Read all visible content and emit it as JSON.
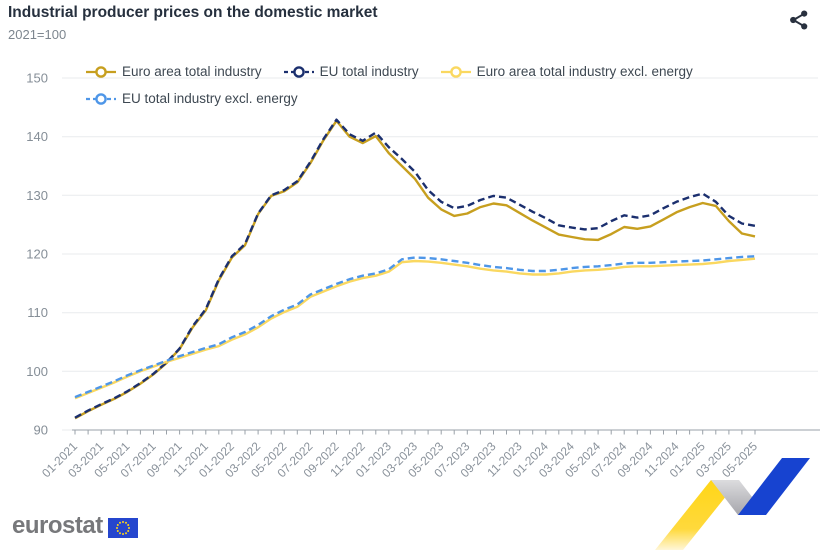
{
  "header": {
    "title": "Industrial producer prices on the domestic market",
    "subtitle": "2021=100"
  },
  "icons": {
    "share": "share-nodes-icon",
    "eu_flag": "eu-flag-icon"
  },
  "footer": {
    "logo_text": "eurostat"
  },
  "chart_data": {
    "type": "line",
    "title": "Industrial producer prices on the domestic market",
    "subtitle": "2021=100",
    "x_start": "01-2021",
    "x_end": "05-2025",
    "x_step_months": 1,
    "x_labels": [
      "01-2021",
      "03-2021",
      "05-2021",
      "07-2021",
      "09-2021",
      "11-2021",
      "01-2022",
      "03-2022",
      "05-2022",
      "07-2022",
      "09-2022",
      "11-2022",
      "01-2023",
      "03-2023",
      "05-2023",
      "07-2023",
      "09-2023",
      "11-2023",
      "01-2024",
      "03-2024",
      "05-2024",
      "07-2024",
      "09-2024",
      "11-2024",
      "01-2025",
      "03-2025",
      "05-2025"
    ],
    "x_label_every_n_points": 2,
    "ylim": [
      90,
      150
    ],
    "yticks": [
      90,
      100,
      110,
      120,
      130,
      140,
      150
    ],
    "grid": "horizontal",
    "legend_position": "top",
    "series": [
      {
        "name": "Euro area total industry",
        "color": "#C79F1F",
        "dash": "solid",
        "values": [
          92.0,
          93.2,
          94.3,
          95.3,
          96.5,
          97.9,
          99.5,
          101.4,
          103.8,
          107.5,
          110.4,
          115.5,
          119.4,
          121.5,
          126.8,
          129.9,
          130.7,
          132.2,
          135.5,
          139.4,
          142.7,
          140.0,
          138.9,
          140.1,
          137.2,
          135.0,
          132.8,
          129.6,
          127.6,
          126.5,
          126.9,
          128.0,
          128.6,
          128.3,
          127.0,
          125.7,
          124.5,
          123.3,
          122.9,
          122.5,
          122.4,
          123.4,
          124.6,
          124.3,
          124.7,
          125.9,
          127.1,
          128.0,
          128.7,
          128.2,
          125.6,
          123.5,
          123.0
        ]
      },
      {
        "name": "EU total industry",
        "color": "#1B2F6E",
        "dash": "dashed",
        "values": [
          92.1,
          93.3,
          94.4,
          95.4,
          96.6,
          98.0,
          99.6,
          101.5,
          103.9,
          107.7,
          110.6,
          115.7,
          119.6,
          121.7,
          126.9,
          130.0,
          130.9,
          132.4,
          135.7,
          139.6,
          142.9,
          140.4,
          139.3,
          140.7,
          138.2,
          136.2,
          134.0,
          130.9,
          128.9,
          127.8,
          128.2,
          129.2,
          129.9,
          129.6,
          128.4,
          127.2,
          126.1,
          124.9,
          124.5,
          124.2,
          124.4,
          125.6,
          126.6,
          126.2,
          126.6,
          127.8,
          128.9,
          129.7,
          130.3,
          128.9,
          126.5,
          125.2,
          124.8
        ]
      },
      {
        "name": "Euro area total industry excl. energy",
        "color": "#FAD860",
        "dash": "solid",
        "values": [
          95.4,
          96.3,
          97.2,
          98.1,
          99.1,
          100.0,
          100.8,
          101.6,
          102.3,
          103.0,
          103.7,
          104.3,
          105.4,
          106.3,
          107.5,
          109.0,
          110.1,
          111.0,
          112.7,
          113.6,
          114.5,
          115.3,
          115.9,
          116.3,
          117.0,
          118.6,
          118.8,
          118.7,
          118.5,
          118.2,
          117.9,
          117.5,
          117.2,
          117.0,
          116.7,
          116.5,
          116.5,
          116.7,
          117.0,
          117.2,
          117.3,
          117.5,
          117.8,
          117.9,
          117.9,
          118.0,
          118.1,
          118.2,
          118.3,
          118.5,
          118.8,
          119.0,
          119.2
        ]
      },
      {
        "name": "EU total industry excl. energy",
        "color": "#4E96E8",
        "dash": "dashed",
        "values": [
          95.6,
          96.5,
          97.4,
          98.3,
          99.3,
          100.2,
          101.0,
          101.8,
          102.6,
          103.3,
          104.0,
          104.6,
          105.8,
          106.7,
          107.9,
          109.4,
          110.5,
          111.4,
          113.1,
          114.0,
          114.9,
          115.7,
          116.3,
          116.7,
          117.4,
          119.1,
          119.4,
          119.3,
          119.1,
          118.8,
          118.5,
          118.1,
          117.8,
          117.6,
          117.3,
          117.1,
          117.1,
          117.3,
          117.6,
          117.8,
          117.9,
          118.1,
          118.4,
          118.5,
          118.5,
          118.6,
          118.7,
          118.8,
          118.9,
          119.1,
          119.3,
          119.5,
          119.6
        ]
      }
    ],
    "colors": {
      "grid": "#E9EBEE",
      "axis": "#9AA1A8",
      "ribbon_yellow": "#FFD617",
      "ribbon_gray": "#B9B9BD",
      "ribbon_blue": "#1743D0",
      "logo_flag_blue": "#2546CE",
      "logo_star_yellow": "#FFD617"
    }
  }
}
